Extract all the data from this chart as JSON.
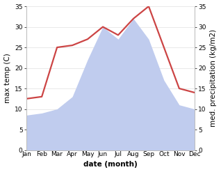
{
  "months": [
    "Jan",
    "Feb",
    "Mar",
    "Apr",
    "May",
    "Jun",
    "Jul",
    "Aug",
    "Sep",
    "Oct",
    "Nov",
    "Dec"
  ],
  "temperature": [
    12.5,
    13.0,
    25.0,
    25.5,
    27.0,
    30.0,
    28.0,
    32.0,
    35.0,
    25.0,
    15.0,
    14.0
  ],
  "precipitation": [
    8.5,
    9.0,
    10.0,
    13.0,
    22.0,
    30.0,
    27.0,
    32.0,
    27.0,
    17.0,
    11.0,
    10.0
  ],
  "temp_color": "#cc4444",
  "precip_color": "#c0ccee",
  "background_color": "#ffffff",
  "ylabel_left": "max temp (C)",
  "ylabel_right": "med. precipitation (kg/m2)",
  "xlabel": "date (month)",
  "ylim": [
    0,
    35
  ],
  "yticks": [
    0,
    5,
    10,
    15,
    20,
    25,
    30,
    35
  ],
  "axis_fontsize": 7.5,
  "tick_fontsize": 6.5,
  "xlabel_fontsize": 7.5,
  "xlabel_fontweight": "bold",
  "linewidth": 1.6
}
